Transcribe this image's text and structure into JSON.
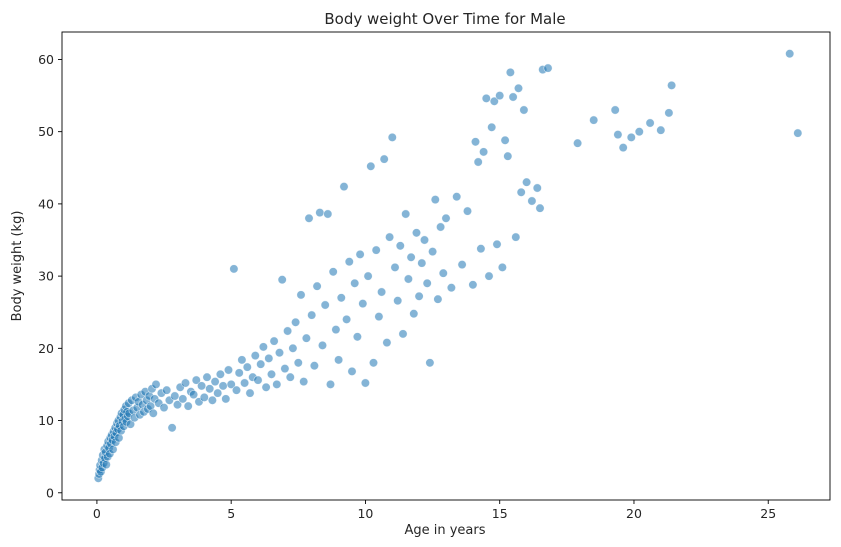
{
  "chart_data": {
    "type": "scatter",
    "title": "Body weight Over Time for Male",
    "xlabel": "Age in years",
    "ylabel": "Body weight (kg)",
    "xlim": [
      -1.3,
      27.3
    ],
    "ylim": [
      -1.0,
      63.8
    ],
    "xticks": [
      0,
      5,
      10,
      15,
      20,
      25
    ],
    "yticks": [
      0,
      10,
      20,
      30,
      40,
      50,
      60
    ],
    "grid": false,
    "legend": "none",
    "point_color": "#1f77b4",
    "point_alpha": 0.55,
    "points": [
      [
        0.05,
        2.0
      ],
      [
        0.08,
        2.6
      ],
      [
        0.1,
        3.2
      ],
      [
        0.12,
        3.8
      ],
      [
        0.15,
        2.9
      ],
      [
        0.18,
        4.5
      ],
      [
        0.2,
        3.5
      ],
      [
        0.22,
        5.2
      ],
      [
        0.25,
        4.1
      ],
      [
        0.28,
        6.0
      ],
      [
        0.3,
        4.8
      ],
      [
        0.32,
        5.6
      ],
      [
        0.35,
        3.9
      ],
      [
        0.38,
        6.5
      ],
      [
        0.4,
        5.0
      ],
      [
        0.42,
        7.1
      ],
      [
        0.45,
        6.2
      ],
      [
        0.48,
        5.4
      ],
      [
        0.5,
        7.6
      ],
      [
        0.52,
        6.8
      ],
      [
        0.55,
        8.0
      ],
      [
        0.58,
        7.3
      ],
      [
        0.6,
        6.0
      ],
      [
        0.62,
        8.5
      ],
      [
        0.65,
        7.8
      ],
      [
        0.68,
        9.0
      ],
      [
        0.7,
        7.0
      ],
      [
        0.72,
        8.3
      ],
      [
        0.75,
        9.6
      ],
      [
        0.78,
        8.8
      ],
      [
        0.8,
        10.0
      ],
      [
        0.82,
        7.6
      ],
      [
        0.85,
        9.3
      ],
      [
        0.88,
        10.5
      ],
      [
        0.9,
        8.6
      ],
      [
        0.92,
        11.0
      ],
      [
        0.95,
        9.9
      ],
      [
        0.98,
        10.8
      ],
      [
        1.0,
        9.2
      ],
      [
        1.02,
        11.5
      ],
      [
        1.05,
        10.2
      ],
      [
        1.08,
        12.0
      ],
      [
        1.1,
        9.8
      ],
      [
        1.12,
        11.2
      ],
      [
        1.15,
        10.6
      ],
      [
        1.18,
        12.4
      ],
      [
        1.2,
        11.0
      ],
      [
        1.25,
        9.5
      ],
      [
        1.3,
        12.8
      ],
      [
        1.35,
        11.4
      ],
      [
        1.4,
        10.4
      ],
      [
        1.45,
        13.2
      ],
      [
        1.5,
        11.8
      ],
      [
        1.55,
        12.6
      ],
      [
        1.6,
        10.8
      ],
      [
        1.65,
        13.6
      ],
      [
        1.7,
        12.2
      ],
      [
        1.75,
        11.2
      ],
      [
        1.8,
        14.0
      ],
      [
        1.85,
        12.8
      ],
      [
        1.9,
        11.6
      ],
      [
        1.95,
        13.4
      ],
      [
        2.0,
        12.0
      ],
      [
        2.05,
        14.4
      ],
      [
        2.1,
        11.0
      ],
      [
        2.15,
        13.0
      ],
      [
        2.2,
        15.0
      ],
      [
        2.3,
        12.4
      ],
      [
        2.4,
        13.8
      ],
      [
        2.5,
        11.8
      ],
      [
        2.6,
        14.2
      ],
      [
        2.7,
        12.8
      ],
      [
        2.8,
        9.0
      ],
      [
        2.9,
        13.4
      ],
      [
        3.0,
        12.2
      ],
      [
        3.1,
        14.6
      ],
      [
        3.2,
        13.0
      ],
      [
        3.3,
        15.2
      ],
      [
        3.4,
        12.0
      ],
      [
        3.5,
        14.0
      ],
      [
        3.6,
        13.6
      ],
      [
        3.7,
        15.6
      ],
      [
        3.8,
        12.6
      ],
      [
        3.9,
        14.8
      ],
      [
        4.0,
        13.2
      ],
      [
        4.1,
        16.0
      ],
      [
        4.2,
        14.4
      ],
      [
        4.3,
        12.8
      ],
      [
        4.4,
        15.4
      ],
      [
        4.5,
        13.8
      ],
      [
        4.6,
        16.4
      ],
      [
        4.7,
        14.8
      ],
      [
        4.8,
        13.0
      ],
      [
        4.9,
        17.0
      ],
      [
        5.0,
        15.0
      ],
      [
        5.1,
        31.0
      ],
      [
        5.2,
        14.2
      ],
      [
        5.3,
        16.6
      ],
      [
        5.4,
        18.4
      ],
      [
        5.5,
        15.2
      ],
      [
        5.6,
        17.4
      ],
      [
        5.7,
        13.8
      ],
      [
        5.8,
        16.0
      ],
      [
        5.9,
        19.0
      ],
      [
        6.0,
        15.6
      ],
      [
        6.1,
        17.8
      ],
      [
        6.2,
        20.2
      ],
      [
        6.3,
        14.6
      ],
      [
        6.4,
        18.6
      ],
      [
        6.5,
        16.4
      ],
      [
        6.6,
        21.0
      ],
      [
        6.7,
        15.0
      ],
      [
        6.8,
        19.4
      ],
      [
        6.9,
        29.5
      ],
      [
        7.0,
        17.2
      ],
      [
        7.1,
        22.4
      ],
      [
        7.2,
        16.0
      ],
      [
        7.3,
        20.0
      ],
      [
        7.4,
        23.6
      ],
      [
        7.5,
        18.0
      ],
      [
        7.6,
        27.4
      ],
      [
        7.7,
        15.4
      ],
      [
        7.8,
        21.4
      ],
      [
        7.9,
        38.0
      ],
      [
        8.0,
        24.6
      ],
      [
        8.1,
        17.6
      ],
      [
        8.2,
        28.6
      ],
      [
        8.3,
        38.8
      ],
      [
        8.4,
        20.4
      ],
      [
        8.5,
        26.0
      ],
      [
        8.6,
        38.6
      ],
      [
        8.7,
        15.0
      ],
      [
        8.8,
        30.6
      ],
      [
        8.9,
        22.6
      ],
      [
        9.0,
        18.4
      ],
      [
        9.1,
        27.0
      ],
      [
        9.2,
        42.4
      ],
      [
        9.3,
        24.0
      ],
      [
        9.4,
        32.0
      ],
      [
        9.5,
        16.8
      ],
      [
        9.6,
        29.0
      ],
      [
        9.7,
        21.6
      ],
      [
        9.8,
        33.0
      ],
      [
        9.9,
        26.2
      ],
      [
        10.0,
        15.2
      ],
      [
        10.1,
        30.0
      ],
      [
        10.2,
        45.2
      ],
      [
        10.3,
        18.0
      ],
      [
        10.4,
        33.6
      ],
      [
        10.5,
        24.4
      ],
      [
        10.6,
        27.8
      ],
      [
        10.7,
        46.2
      ],
      [
        10.8,
        20.8
      ],
      [
        10.9,
        35.4
      ],
      [
        11.0,
        49.2
      ],
      [
        11.1,
        31.2
      ],
      [
        11.2,
        26.6
      ],
      [
        11.3,
        34.2
      ],
      [
        11.4,
        22.0
      ],
      [
        11.5,
        38.6
      ],
      [
        11.6,
        29.6
      ],
      [
        11.7,
        32.6
      ],
      [
        11.8,
        24.8
      ],
      [
        11.9,
        36.0
      ],
      [
        12.0,
        27.2
      ],
      [
        12.1,
        31.8
      ],
      [
        12.2,
        35.0
      ],
      [
        12.3,
        29.0
      ],
      [
        12.4,
        18.0
      ],
      [
        12.5,
        33.4
      ],
      [
        12.6,
        40.6
      ],
      [
        12.7,
        26.8
      ],
      [
        12.8,
        36.8
      ],
      [
        12.9,
        30.4
      ],
      [
        13.0,
        38.0
      ],
      [
        13.2,
        28.4
      ],
      [
        13.4,
        41.0
      ],
      [
        13.6,
        31.6
      ],
      [
        13.8,
        39.0
      ],
      [
        14.0,
        28.8
      ],
      [
        14.1,
        48.6
      ],
      [
        14.2,
        45.8
      ],
      [
        14.3,
        33.8
      ],
      [
        14.4,
        47.2
      ],
      [
        14.5,
        54.6
      ],
      [
        14.6,
        30.0
      ],
      [
        14.7,
        50.6
      ],
      [
        14.8,
        54.2
      ],
      [
        14.9,
        34.4
      ],
      [
        15.0,
        55.0
      ],
      [
        15.1,
        31.2
      ],
      [
        15.2,
        48.8
      ],
      [
        15.3,
        46.6
      ],
      [
        15.4,
        58.2
      ],
      [
        15.5,
        54.8
      ],
      [
        15.6,
        35.4
      ],
      [
        15.7,
        56.0
      ],
      [
        15.8,
        41.6
      ],
      [
        15.9,
        53.0
      ],
      [
        16.0,
        43.0
      ],
      [
        16.2,
        40.4
      ],
      [
        16.4,
        42.2
      ],
      [
        16.5,
        39.4
      ],
      [
        16.6,
        58.6
      ],
      [
        16.8,
        58.8
      ],
      [
        17.9,
        48.4
      ],
      [
        18.5,
        51.6
      ],
      [
        19.3,
        53.0
      ],
      [
        19.4,
        49.6
      ],
      [
        19.6,
        47.8
      ],
      [
        19.9,
        49.2
      ],
      [
        20.2,
        50.0
      ],
      [
        20.6,
        51.2
      ],
      [
        21.0,
        50.2
      ],
      [
        21.3,
        52.6
      ],
      [
        21.4,
        56.4
      ],
      [
        25.8,
        60.8
      ],
      [
        26.1,
        49.8
      ]
    ]
  }
}
